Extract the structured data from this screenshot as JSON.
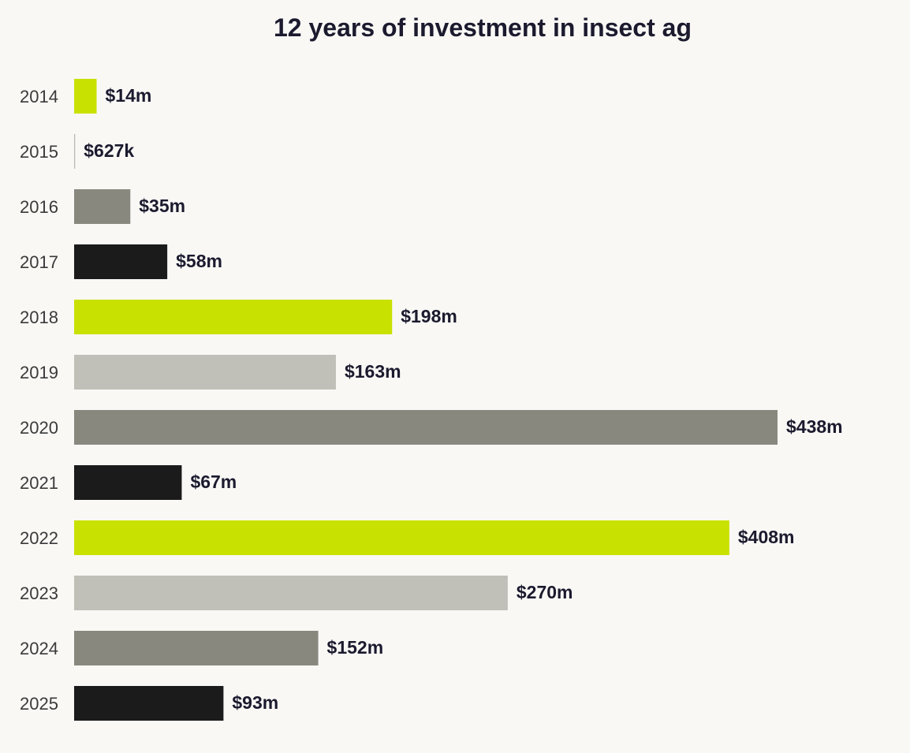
{
  "chart_data": {
    "type": "bar",
    "orientation": "horizontal",
    "title": "12 years of investment in insect ag",
    "xlabel": "",
    "ylabel": "",
    "unit": "$m",
    "grid": false,
    "legend": "none",
    "categories": [
      "2014",
      "2015",
      "2016",
      "2017",
      "2018",
      "2019",
      "2020",
      "2021",
      "2022",
      "2023",
      "2024",
      "2025"
    ],
    "values": [
      14,
      0.627,
      35,
      58,
      198,
      163,
      438,
      67,
      408,
      270,
      152,
      93
    ],
    "value_labels": [
      "$14m",
      "$627k",
      "$35m",
      "$58m",
      "$198m",
      "$163m",
      "$438m",
      "$67m",
      "$408m",
      "$270m",
      "$152m",
      "$93m"
    ],
    "bar_colors": [
      "#c9e100",
      "#c0bfb8",
      "#89887f",
      "#1b1b1b",
      "#c9e100",
      "#c0bfb8",
      "#89887f",
      "#1b1b1b",
      "#c9e100",
      "#c0bfb8",
      "#89887f",
      "#1b1b1b"
    ]
  }
}
